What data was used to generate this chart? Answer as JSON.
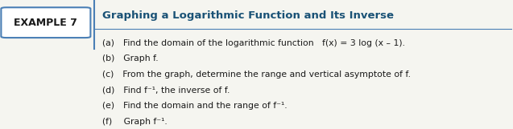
{
  "example_label": "EXAMPLE 7",
  "title": "Graphing a Logarithmic Function and Its Inverse",
  "lines": [
    "(a) Find the domain of the logarithmic function   f(x) = 3 log (x – 1).",
    "(b) Graph f.",
    "(c) From the graph, determine the range and vertical asymptote of f.",
    "(d) Find f⁻¹, the inverse of f.",
    "(e) Find the domain and the range of f⁻¹.",
    "(f)  Graph f⁻¹."
  ],
  "bg_color": "#f5f5f0",
  "box_edge_color": "#4a7fb5",
  "title_color": "#1a5276",
  "text_color": "#1a1a1a",
  "box_fill": "#ffffff",
  "divider_color": "#4a7fb5"
}
